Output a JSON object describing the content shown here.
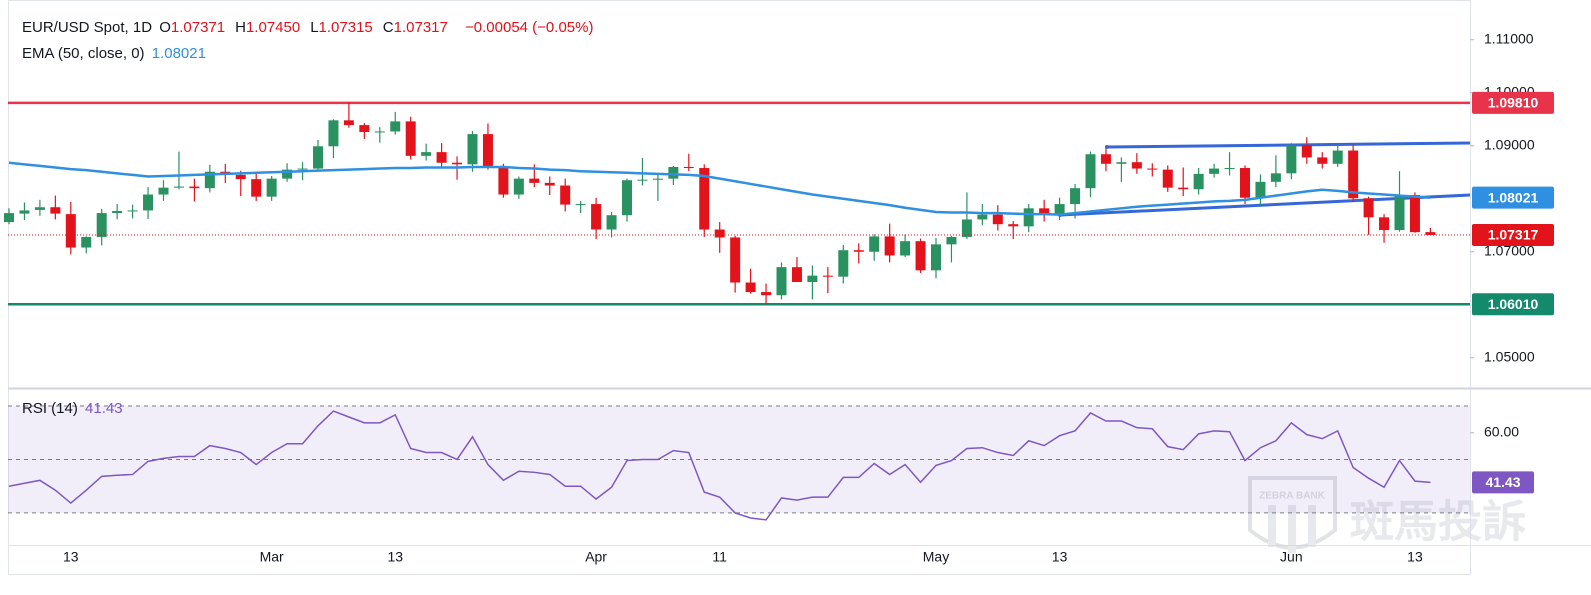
{
  "header": {
    "symbol": "EUR/USD Spot, 1D",
    "ohlc": [
      {
        "key": "O",
        "value": "1.07371"
      },
      {
        "key": "H",
        "value": "1.07450"
      },
      {
        "key": "L",
        "value": "1.07315"
      },
      {
        "key": "C",
        "value": "1.07317"
      }
    ],
    "change": "−0.00054 (−0.05%)"
  },
  "watermark": {
    "text": "斑馬投訴",
    "badge": "ZEBRA BANK"
  },
  "chart_data": [
    {
      "type": "candlestick",
      "categories": [
        null,
        null,
        null,
        null,
        "13",
        null,
        null,
        null,
        null,
        null,
        null,
        null,
        null,
        null,
        null,
        null,
        null,
        "Mar",
        null,
        null,
        null,
        null,
        null,
        null,
        null,
        "13",
        null,
        null,
        null,
        null,
        null,
        null,
        null,
        null,
        null,
        null,
        null,
        null,
        "Apr",
        null,
        null,
        null,
        null,
        null,
        null,
        null,
        "11",
        null,
        null,
        null,
        null,
        null,
        null,
        null,
        null,
        null,
        null,
        null,
        null,
        null,
        "May",
        null,
        null,
        null,
        null,
        null,
        null,
        null,
        "13",
        null,
        null,
        null,
        null,
        null,
        null,
        null,
        null,
        null,
        null,
        null,
        null,
        null,
        null,
        "Jun",
        null,
        null,
        null,
        null,
        null,
        null,
        null,
        "13",
        null
      ],
      "open": [
        1.0756,
        1.0772,
        1.0779,
        1.0784,
        1.0771,
        1.0708,
        1.0728,
        1.0773,
        1.0777,
        1.0778,
        1.0808,
        1.0821,
        1.0823,
        1.082,
        1.0851,
        1.0845,
        1.0837,
        1.0804,
        1.0838,
        1.0855,
        1.0857,
        1.0899,
        1.0948,
        1.0939,
        1.0926,
        1.0927,
        1.0946,
        1.0881,
        1.0888,
        1.0868,
        1.0865,
        1.0922,
        1.0859,
        1.0808,
        1.0838,
        1.083,
        1.0825,
        1.0789,
        1.079,
        1.0742,
        1.0769,
        1.0835,
        1.0836,
        1.0838,
        1.086,
        1.0858,
        1.0742,
        1.0727,
        1.0642,
        1.0624,
        1.0618,
        1.0671,
        1.0643,
        1.0655,
        1.0653,
        1.0703,
        1.07,
        1.0729,
        1.0693,
        1.072,
        1.0665,
        1.0714,
        1.0728,
        1.0761,
        1.077,
        1.0752,
        1.0748,
        1.0782,
        1.0771,
        1.079,
        1.082,
        1.0884,
        1.0866,
        1.0869,
        1.0857,
        1.0855,
        1.0821,
        1.0818,
        1.0847,
        1.0857,
        1.0858,
        1.0802,
        1.0832,
        1.0848,
        1.0901,
        1.0878,
        1.0866,
        1.0891,
        1.0801,
        1.0765,
        1.0741,
        1.0807,
        1.07371
      ],
      "high": [
        1.0782,
        1.0793,
        1.0798,
        1.0806,
        1.0794,
        1.0729,
        1.0781,
        1.079,
        1.0789,
        1.0822,
        1.0835,
        1.0889,
        1.0838,
        1.0864,
        1.0866,
        1.0853,
        1.085,
        1.0843,
        1.0867,
        1.0869,
        1.0911,
        1.095,
        1.0981,
        1.0943,
        1.0935,
        1.0964,
        1.0955,
        1.0904,
        1.0905,
        1.088,
        1.0928,
        1.0942,
        1.0866,
        1.0842,
        1.0865,
        1.0842,
        1.0838,
        1.0796,
        1.0802,
        1.0775,
        1.0838,
        1.0877,
        1.0846,
        1.0862,
        1.0885,
        1.0865,
        1.0756,
        1.073,
        1.0668,
        1.064,
        1.068,
        1.069,
        1.0674,
        1.0671,
        1.0713,
        1.0716,
        1.0733,
        1.0753,
        1.0733,
        1.0725,
        1.0726,
        1.073,
        1.0812,
        1.079,
        1.0788,
        1.0758,
        1.079,
        1.0798,
        1.0802,
        1.0828,
        1.0889,
        1.0895,
        1.0878,
        1.0886,
        1.0867,
        1.0863,
        1.0859,
        1.0858,
        1.0866,
        1.0888,
        1.0863,
        1.0846,
        1.0882,
        1.0905,
        1.0916,
        1.0888,
        1.0903,
        1.0902,
        1.0804,
        1.0771,
        1.0852,
        1.0812,
        1.0745
      ],
      "low": [
        1.0752,
        1.076,
        1.0768,
        1.0761,
        1.0695,
        1.0697,
        1.0712,
        1.0761,
        1.0763,
        1.0762,
        1.0796,
        1.0818,
        1.0795,
        1.0812,
        1.083,
        1.0805,
        1.0796,
        1.0796,
        1.0832,
        1.0835,
        1.0851,
        1.0877,
        1.0934,
        1.0913,
        1.0906,
        1.0921,
        1.0874,
        1.0872,
        1.086,
        1.0836,
        1.0851,
        1.0855,
        1.0802,
        1.08,
        1.0822,
        1.0807,
        1.0776,
        1.0773,
        1.0724,
        1.0727,
        1.0757,
        1.0825,
        1.0796,
        1.0826,
        1.0852,
        1.0728,
        1.0698,
        1.0623,
        1.0621,
        1.0601,
        1.061,
        1.0643,
        1.061,
        1.0622,
        1.064,
        1.0678,
        1.0683,
        1.068,
        1.069,
        1.066,
        1.065,
        1.068,
        1.0724,
        1.075,
        1.074,
        1.0724,
        1.0737,
        1.0757,
        1.076,
        1.0763,
        1.0803,
        1.0852,
        1.0832,
        1.0847,
        1.0842,
        1.0813,
        1.0805,
        1.0808,
        1.084,
        1.0844,
        1.079,
        1.0788,
        1.0822,
        1.0837,
        1.0866,
        1.0857,
        1.086,
        1.0794,
        1.0732,
        1.0717,
        1.0738,
        1.0736,
        1.07315
      ],
      "close": [
        1.0773,
        1.0778,
        1.0784,
        1.0772,
        1.0708,
        1.0728,
        1.0773,
        1.0777,
        1.0778,
        1.0808,
        1.0821,
        1.0823,
        1.082,
        1.0851,
        1.0845,
        1.0837,
        1.0804,
        1.0838,
        1.0855,
        1.0857,
        1.0899,
        1.0948,
        1.0939,
        1.0926,
        1.0927,
        1.0946,
        1.0881,
        1.0888,
        1.0868,
        1.0865,
        1.0922,
        1.0859,
        1.0808,
        1.0838,
        1.083,
        1.0825,
        1.0789,
        1.079,
        1.0742,
        1.0769,
        1.0835,
        1.0836,
        1.0838,
        1.086,
        1.0858,
        1.0742,
        1.0727,
        1.0642,
        1.0624,
        1.0618,
        1.0671,
        1.0643,
        1.0655,
        1.0653,
        1.0703,
        1.07,
        1.0729,
        1.0693,
        1.072,
        1.0665,
        1.0714,
        1.0728,
        1.0761,
        1.077,
        1.0752,
        1.0748,
        1.0782,
        1.0771,
        1.079,
        1.082,
        1.0884,
        1.0866,
        1.0869,
        1.0857,
        1.0855,
        1.0821,
        1.0818,
        1.0847,
        1.0857,
        1.0858,
        1.0802,
        1.0832,
        1.0848,
        1.0901,
        1.0878,
        1.0866,
        1.0891,
        1.0801,
        1.0765,
        1.0741,
        1.0807,
        1.0737,
        1.07317
      ],
      "up_color": "#2a9160",
      "down_color": "#e3131b",
      "ylim": [
        1.0443,
        1.1175
      ],
      "yticks": [
        {
          "value": 1.11,
          "label": "1.11000"
        },
        {
          "value": 1.1,
          "label": "1.10000"
        },
        {
          "value": 1.09,
          "label": "1.09000"
        },
        {
          "value": 1.07,
          "label": "1.07000"
        },
        {
          "value": 1.05,
          "label": "1.05000"
        }
      ],
      "ema": {
        "name": "EMA (50, close, 0)",
        "color": "#2f8fe0",
        "values": [
          1.0868,
          1.0865,
          1.0862,
          1.0859,
          1.0856,
          1.0854,
          1.0851,
          1.0848,
          1.0845,
          1.0842,
          1.0843,
          1.0844,
          1.0845,
          1.0846,
          1.0847,
          1.0848,
          1.0849,
          1.085,
          1.0851,
          1.0852,
          1.0853,
          1.0854,
          1.0855,
          1.0856,
          1.0857,
          1.0858,
          1.0858,
          1.0859,
          1.0859,
          1.0859,
          1.086,
          1.086,
          1.086,
          1.0858,
          1.0857,
          1.0855,
          1.0854,
          1.0852,
          1.0851,
          1.085,
          1.0849,
          1.0848,
          1.0847,
          1.0846,
          1.0845,
          1.0843,
          1.0838,
          1.0833,
          1.0828,
          1.0823,
          1.0818,
          1.0813,
          1.0808,
          1.0804,
          1.08,
          1.0796,
          1.0792,
          1.0788,
          1.0783,
          1.0779,
          1.0775,
          1.0774,
          1.0774,
          1.0773,
          1.0773,
          1.0772,
          1.0771,
          1.0771,
          1.077,
          1.0773,
          1.0776,
          1.0779,
          1.0782,
          1.0785,
          1.0787,
          1.0789,
          1.0791,
          1.0793,
          1.0795,
          1.0796,
          1.0798,
          1.0802,
          1.0806,
          1.081,
          1.0814,
          1.0817,
          1.0815,
          1.0812,
          1.081,
          1.0808,
          1.0806,
          1.0804,
          1.08021
        ]
      },
      "levels": [
        {
          "value": 1.0981,
          "label": "1.09810",
          "color": "#e8334a"
        },
        {
          "value": 1.0601,
          "label": "1.06010",
          "color": "#148a6c"
        }
      ]
    },
    {
      "type": "line",
      "series": [
        {
          "name": "RSI (14)",
          "color": "#7e57c2",
          "values": [
            40.0,
            41.1,
            42.2,
            38.5,
            33.7,
            38.5,
            43.7,
            44.1,
            44.4,
            49.3,
            50.4,
            51.1,
            51.1,
            55.2,
            54.1,
            52.6,
            48.1,
            52.6,
            55.9,
            55.9,
            62.6,
            68.1,
            65.9,
            63.7,
            63.7,
            66.7,
            54.1,
            52.6,
            52.6,
            50.0,
            58.5,
            48.1,
            42.2,
            45.6,
            45.2,
            44.4,
            40.0,
            40.0,
            35.2,
            39.6,
            49.6,
            50.0,
            50.0,
            53.3,
            52.6,
            37.8,
            35.9,
            30.0,
            28.1,
            27.4,
            35.6,
            34.8,
            35.9,
            35.9,
            43.3,
            43.3,
            48.5,
            44.4,
            48.1,
            41.5,
            47.8,
            49.6,
            54.1,
            54.4,
            52.6,
            51.5,
            57.0,
            55.2,
            58.9,
            60.7,
            67.4,
            64.4,
            64.4,
            61.9,
            61.5,
            54.8,
            53.7,
            59.6,
            60.7,
            60.4,
            49.6,
            54.4,
            57.0,
            63.7,
            59.3,
            57.8,
            60.7,
            47.0,
            43.0,
            39.6,
            49.6,
            41.9,
            41.43
          ]
        }
      ],
      "ylim": [
        18,
        76
      ],
      "yticks": [
        {
          "value": 60,
          "label": "60.00"
        }
      ],
      "levels": [
        70,
        50,
        30
      ]
    }
  ]
}
